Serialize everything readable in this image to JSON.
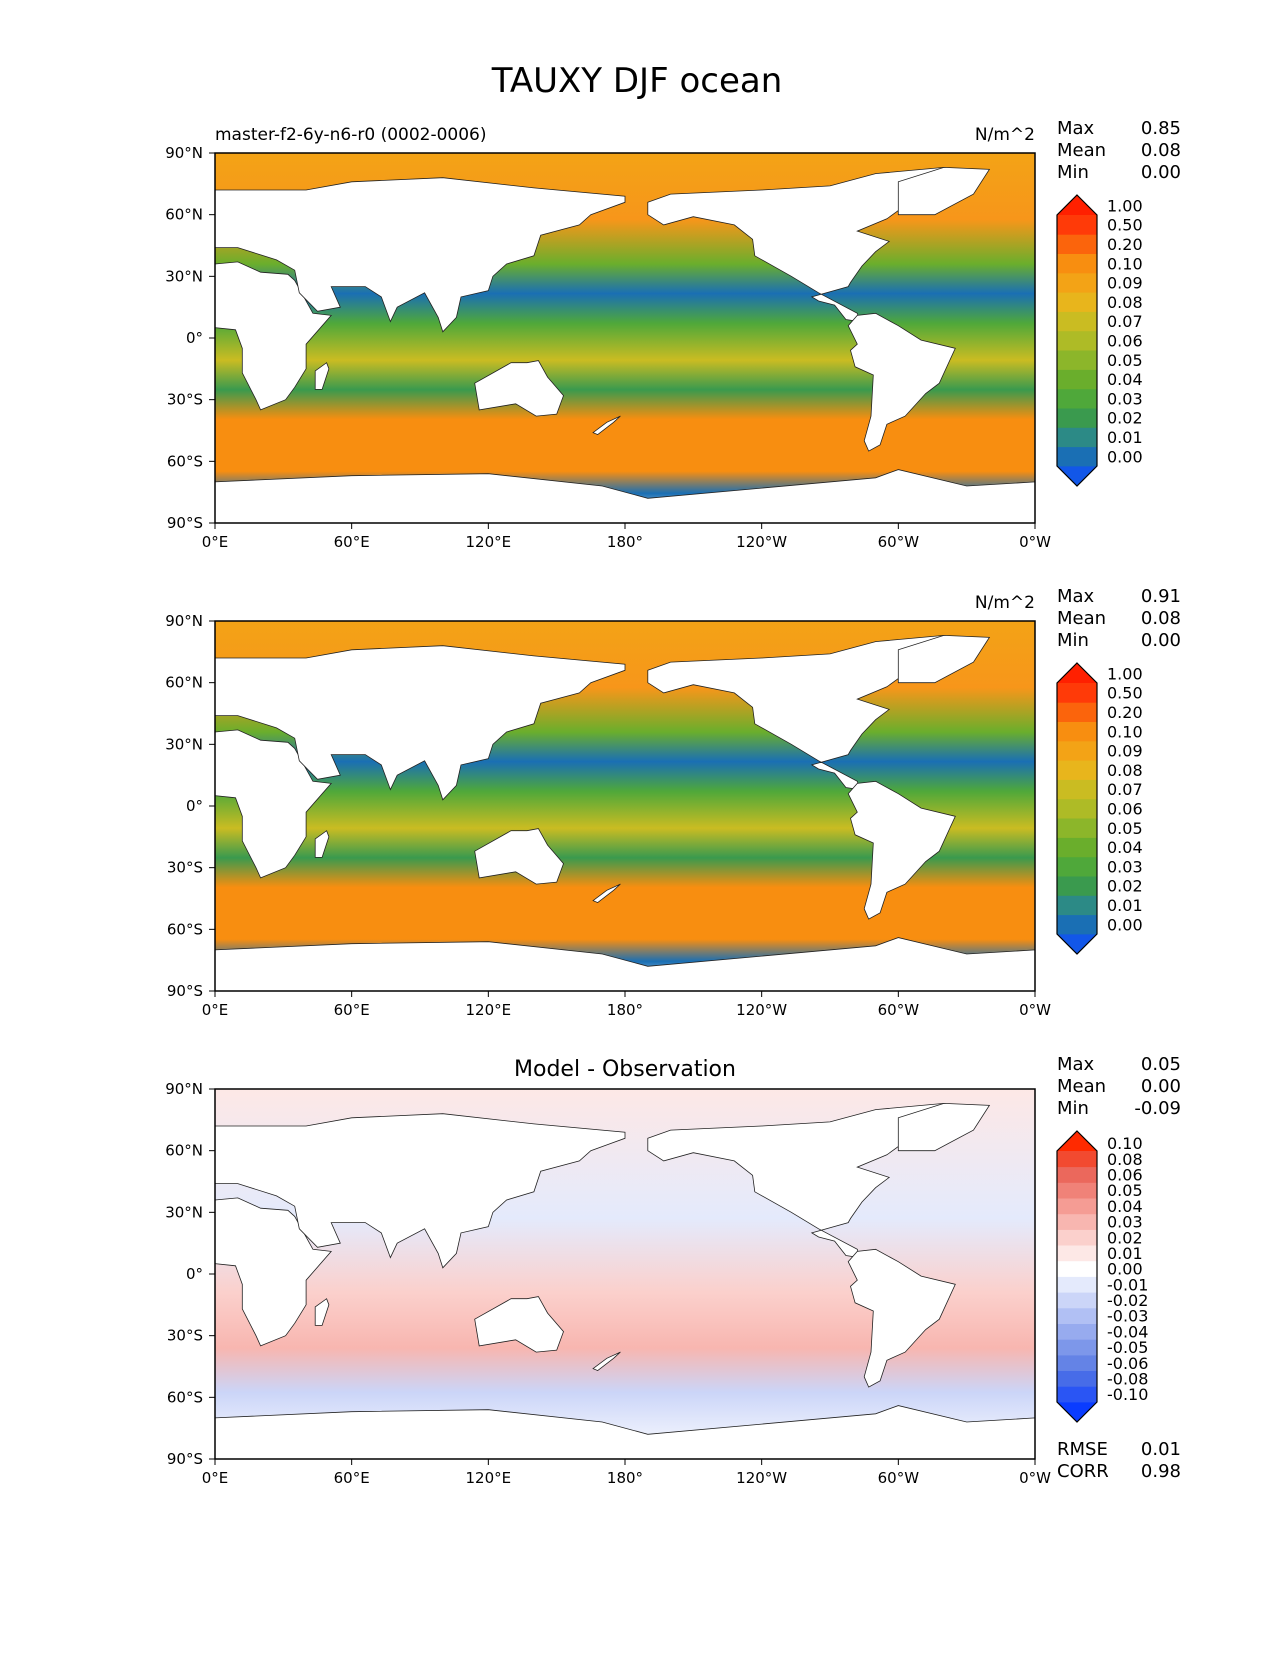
{
  "figure": {
    "title": "TAUXY DJF ocean"
  },
  "x_ticks": [
    "0°E",
    "60°E",
    "120°E",
    "180°",
    "120°W",
    "60°W",
    "0°W"
  ],
  "y_ticks": [
    "90°N",
    "60°N",
    "30°N",
    "0°",
    "30°S",
    "60°S",
    "90°S"
  ],
  "stat_labels": {
    "max": "Max",
    "mean": "Mean",
    "min": "Min",
    "rmse": "RMSE",
    "corr": "CORR"
  },
  "panels": [
    {
      "left_title": "master-f2-6y-n6-r0 (0002-0006)",
      "center_title": "",
      "units": "N/m^2",
      "stats": {
        "max": "0.85",
        "mean": "0.08",
        "min": "0.00"
      }
    },
    {
      "left_title": "",
      "center_title": "",
      "units": "N/m^2",
      "stats": {
        "max": "0.91",
        "mean": "0.08",
        "min": "0.00"
      }
    },
    {
      "left_title": "",
      "center_title": "Model - Observation",
      "units": "",
      "stats": {
        "max": "0.05",
        "mean": "0.00",
        "min": "-0.09",
        "rmse": "0.01",
        "corr": "0.98"
      }
    }
  ],
  "colorbars": {
    "field": {
      "labels": [
        "0.00",
        "0.01",
        "0.02",
        "0.03",
        "0.04",
        "0.05",
        "0.06",
        "0.07",
        "0.08",
        "0.09",
        "0.10",
        "0.20",
        "0.50",
        "1.00"
      ],
      "colors": [
        "#1257e8",
        "#1a6fb4",
        "#2c8a86",
        "#3a9a4e",
        "#4fa83a",
        "#6aae2c",
        "#8cb62a",
        "#aebb26",
        "#cabc22",
        "#e8b51c",
        "#f3a316",
        "#f88e10",
        "#fb640c",
        "#ff3a08",
        "#ff2000"
      ]
    },
    "diff": {
      "labels": [
        "-0.10",
        "-0.08",
        "-0.06",
        "-0.05",
        "-0.04",
        "-0.03",
        "-0.02",
        "-0.01",
        "0.00",
        "0.01",
        "0.02",
        "0.03",
        "0.04",
        "0.05",
        "0.06",
        "0.08",
        "0.10"
      ],
      "colors": [
        "#0a3cff",
        "#2a55f4",
        "#476ce8",
        "#6483e6",
        "#7d97ea",
        "#97abef",
        "#b1c0f4",
        "#cbd5f8",
        "#e4eafc",
        "#ffffff",
        "#fde8e6",
        "#fbd0cc",
        "#f8b6b0",
        "#f59c94",
        "#f08278",
        "#eb685c",
        "#f24a30",
        "#ff2a00"
      ]
    }
  },
  "chart_data": [
    {
      "type": "heatmap",
      "projection": "plate-carree",
      "title": "master-f2-6y-n6-r0 (0002-0006)",
      "units": "N/m^2",
      "xlim": [
        0,
        360
      ],
      "ylim": [
        -90,
        90
      ],
      "max": 0.85,
      "mean": 0.08,
      "min": 0.0,
      "contour_levels": [
        0.0,
        0.01,
        0.02,
        0.03,
        0.04,
        0.05,
        0.06,
        0.07,
        0.08,
        0.09,
        0.1,
        0.2,
        0.5,
        1.0
      ]
    },
    {
      "type": "heatmap",
      "projection": "plate-carree",
      "units": "N/m^2",
      "xlim": [
        0,
        360
      ],
      "ylim": [
        -90,
        90
      ],
      "max": 0.91,
      "mean": 0.08,
      "min": 0.0,
      "contour_levels": [
        0.0,
        0.01,
        0.02,
        0.03,
        0.04,
        0.05,
        0.06,
        0.07,
        0.08,
        0.09,
        0.1,
        0.2,
        0.5,
        1.0
      ]
    },
    {
      "type": "heatmap",
      "projection": "plate-carree",
      "title": "Model - Observation",
      "xlim": [
        0,
        360
      ],
      "ylim": [
        -90,
        90
      ],
      "max": 0.05,
      "mean": 0.0,
      "min": -0.09,
      "rmse": 0.01,
      "corr": 0.98,
      "contour_levels": [
        -0.1,
        -0.08,
        -0.06,
        -0.05,
        -0.04,
        -0.03,
        -0.02,
        -0.01,
        0.0,
        0.01,
        0.02,
        0.03,
        0.04,
        0.05,
        0.06,
        0.08,
        0.1
      ]
    }
  ]
}
